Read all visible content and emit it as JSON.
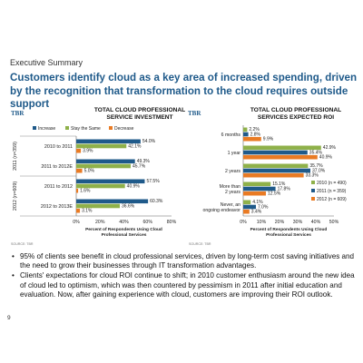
{
  "section_label": "Executive Summary",
  "headline": "Customers identify cloud as a key area of increased spending, driven by the recognition that transformation to the cloud requires outside support",
  "logo_text": "TBR",
  "source_text": "SOURCE: TBR",
  "colors": {
    "increase": "#1f5a8a",
    "same": "#8fb14a",
    "decrease": "#e97b24",
    "y2010": "#8fb14a",
    "y2011": "#1f5a8a",
    "y2012": "#e97b24"
  },
  "chart_data": [
    {
      "type": "bar",
      "orientation": "horizontal",
      "title": "TOTAL CLOUD PROFESSIONAL SERVICE INVESTMENT",
      "xlabel": "Percent of Respondents Using Cloud Professional Services",
      "xlim": [
        0,
        80
      ],
      "xticks": [
        "0%",
        "20%",
        "40%",
        "60%",
        "80%"
      ],
      "legend_position": "top",
      "groups": [
        {
          "label": "2011 (n=359)",
          "categories": [
            "2010 to 2011",
            "2011 to 2012E"
          ]
        },
        {
          "label": "2012 (n=609)",
          "categories": [
            "2011 to 2012",
            "2012 to 2013E"
          ]
        }
      ],
      "categories": [
        "2010 to 2011",
        "2011 to 2012E",
        "2011 to 2012",
        "2012 to 2013E"
      ],
      "series": [
        {
          "name": "Increase",
          "values": [
            54.0,
            49.3,
            57.5,
            60.3
          ],
          "labels": [
            "54.0%",
            "49.3%",
            "57.5%",
            "60.3%"
          ]
        },
        {
          "name": "Stay the Same",
          "values": [
            42.1,
            45.7,
            40.9,
            36.6
          ],
          "labels": [
            "42.1%",
            "45.7%",
            "40.9%",
            "36.6%"
          ]
        },
        {
          "name": "Decrease",
          "values": [
            3.9,
            5.0,
            1.6,
            3.1
          ],
          "labels": [
            "3.9%",
            "5.0%",
            "1.6%",
            "3.1%"
          ]
        }
      ]
    },
    {
      "type": "bar",
      "orientation": "horizontal",
      "title": "TOTAL CLOUD PROFESSIONAL SERVICES EXPECTED ROI",
      "xlabel": "Percent of Respondents Using Cloud Professional Services",
      "xlim": [
        0,
        50
      ],
      "xticks": [
        "0%",
        "10%",
        "20%",
        "30%",
        "40%",
        "50%"
      ],
      "legend_position": "bottom-right",
      "categories": [
        "6 months",
        "1 year",
        "2 years",
        "More than 2 years",
        "Never, an ongoing endeavor"
      ],
      "series": [
        {
          "name": "2010 (n = 490)",
          "values": [
            2.2,
            42.9,
            35.7,
            15.1,
            4.1
          ],
          "labels": [
            "2.2%",
            "42.9%",
            "35.7%",
            "15.1%",
            "4.1%"
          ]
        },
        {
          "name": "2011 (n = 359)",
          "values": [
            2.8,
            35.4,
            37.0,
            17.8,
            7.0
          ],
          "labels": [
            "2.8%",
            "35.4%",
            "37.0%",
            "17.8%",
            "7.0%"
          ]
        },
        {
          "name": "2012 (n = 609)",
          "values": [
            9.9,
            40.9,
            33.3,
            12.5,
            3.4
          ],
          "labels": [
            "9.9%",
            "40.9%",
            "33.3%",
            "12.5%",
            "3.4%"
          ]
        }
      ]
    }
  ],
  "bullets": [
    "95% of clients see benefit in cloud professional services, driven by long-term cost saving initiatives and the need to grow their businesses through IT transformation advantages.",
    "Clients' expectations for cloud ROI continue to shift; in 2010 customer enthusiasm around the new idea of cloud led to optimism, which was then countered by pessimism in 2011 after initial education and evaluation. Now, after gaining experience with cloud, customers are improving their ROI outlook."
  ],
  "page_number": "9"
}
